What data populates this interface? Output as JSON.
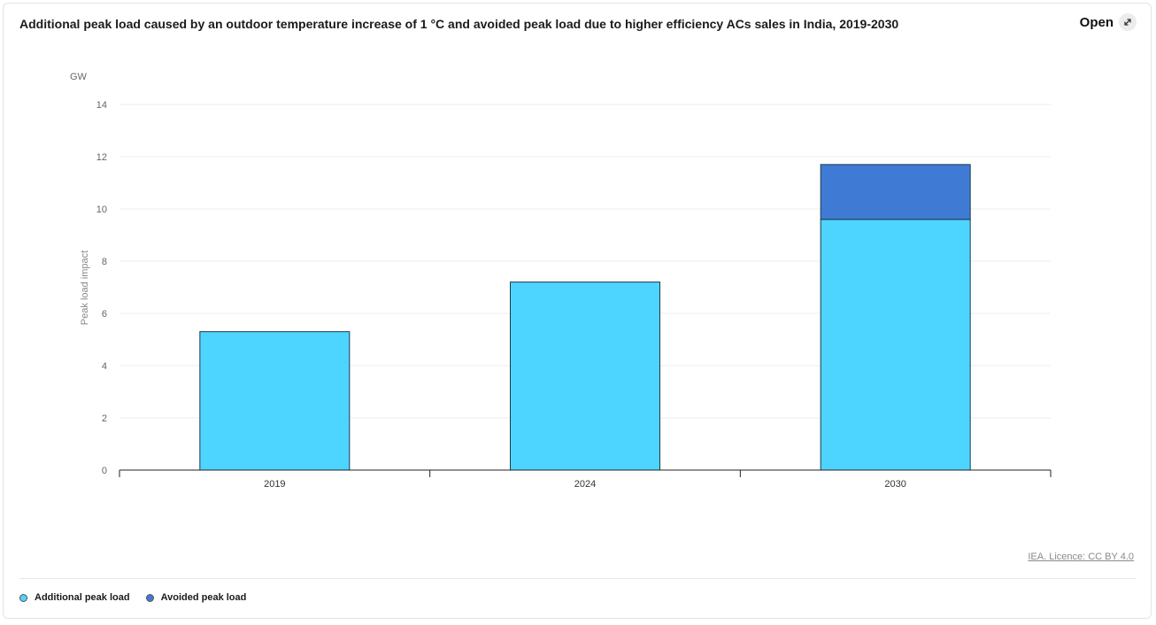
{
  "header": {
    "title": "Additional peak load caused by an outdoor temperature increase of 1 °C and avoided peak load due to higher efficiency ACs sales in India, 2019-2030",
    "open_label": "Open"
  },
  "footer": {
    "source": "IEA. Licence: CC BY 4.0"
  },
  "colors": {
    "additional": "#4dd4ff",
    "avoided": "#3f7bd4",
    "bar_stroke": "#1e3a4a",
    "grid": "#ececec",
    "axis": "#222222"
  },
  "chart_data": {
    "type": "bar",
    "stacked": true,
    "title": "Additional peak load caused by an outdoor temperature increase of 1 °C and avoided peak load due to higher efficiency ACs sales in India, 2019-2030",
    "unit": "GW",
    "ylabel": "Peak load impact",
    "xlabel": "",
    "categories": [
      "2019",
      "2024",
      "2030"
    ],
    "series": [
      {
        "name": "Additional peak load",
        "values": [
          5.3,
          7.2,
          9.6
        ]
      },
      {
        "name": "Avoided peak load",
        "values": [
          0,
          0,
          2.1
        ]
      }
    ],
    "ylim": [
      0,
      14
    ],
    "yticks": [
      0,
      2,
      4,
      6,
      8,
      10,
      12,
      14
    ],
    "grid": true,
    "legend_position": "bottom-left"
  }
}
